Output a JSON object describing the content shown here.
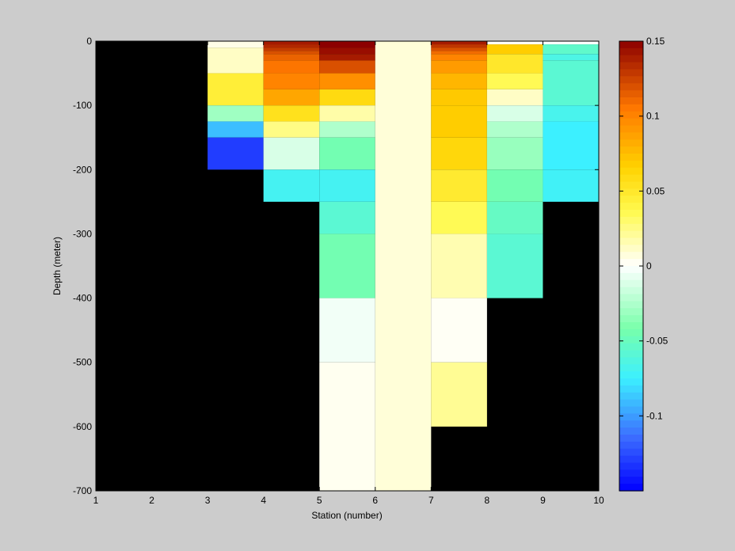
{
  "chart_data": {
    "type": "heatmap",
    "title": "",
    "xlabel": "Station (number)",
    "ylabel": "Depth (meter)",
    "xlim": [
      1,
      10
    ],
    "ylim": [
      -700,
      0
    ],
    "xticks": [
      "1",
      "2",
      "3",
      "4",
      "5",
      "6",
      "7",
      "8",
      "9",
      "10"
    ],
    "yticks": [
      "0",
      "-100",
      "-200",
      "-300",
      "-400",
      "-500",
      "-600",
      "-700"
    ],
    "background_color": "#000000",
    "colorbar": {
      "clim": [
        -0.15,
        0.15
      ],
      "ticks": [
        {
          "label": "0.15",
          "value": 0.15
        },
        {
          "label": "0.1",
          "value": 0.1
        },
        {
          "label": "0.05",
          "value": 0.05
        },
        {
          "label": "0",
          "value": 0
        },
        {
          "label": "-0.05",
          "value": -0.05
        },
        {
          "label": "-0.1",
          "value": -0.1
        }
      ],
      "colormap": "jet-like diverging (blue-cyan-green-white-yellow-orange-darkred)"
    },
    "columns": [
      {
        "x0": 3,
        "x1": 4,
        "cells": [
          {
            "d0": 0,
            "d1": -10,
            "v": 0.005
          },
          {
            "d0": -10,
            "d1": -50,
            "v": 0.012
          },
          {
            "d0": -50,
            "d1": -100,
            "v": 0.045
          },
          {
            "d0": -100,
            "d1": -125,
            "v": -0.03
          },
          {
            "d0": -125,
            "d1": -150,
            "v": -0.09
          },
          {
            "d0": -150,
            "d1": -200,
            "v": -0.13
          }
        ]
      },
      {
        "x0": 4,
        "x1": 5,
        "cells": [
          {
            "d0": 0,
            "d1": -5,
            "v": 0.14
          },
          {
            "d0": -5,
            "d1": -10,
            "v": 0.135
          },
          {
            "d0": -10,
            "d1": -15,
            "v": 0.128
          },
          {
            "d0": -15,
            "d1": -20,
            "v": 0.12
          },
          {
            "d0": -20,
            "d1": -30,
            "v": 0.113
          },
          {
            "d0": -30,
            "d1": -50,
            "v": 0.106
          },
          {
            "d0": -50,
            "d1": -75,
            "v": 0.1
          },
          {
            "d0": -75,
            "d1": -100,
            "v": 0.085
          },
          {
            "d0": -100,
            "d1": -125,
            "v": 0.055
          },
          {
            "d0": -125,
            "d1": -150,
            "v": 0.025
          },
          {
            "d0": -150,
            "d1": -200,
            "v": -0.012
          },
          {
            "d0": -200,
            "d1": -250,
            "v": -0.07
          }
        ]
      },
      {
        "x0": 5,
        "x1": 6,
        "cells": [
          {
            "d0": 0,
            "d1": -10,
            "v": 0.15
          },
          {
            "d0": -10,
            "d1": -20,
            "v": 0.145
          },
          {
            "d0": -20,
            "d1": -30,
            "v": 0.14
          },
          {
            "d0": -30,
            "d1": -50,
            "v": 0.12
          },
          {
            "d0": -50,
            "d1": -75,
            "v": 0.095
          },
          {
            "d0": -75,
            "d1": -100,
            "v": 0.06
          },
          {
            "d0": -100,
            "d1": -125,
            "v": 0.018
          },
          {
            "d0": -125,
            "d1": -150,
            "v": -0.025
          },
          {
            "d0": -150,
            "d1": -200,
            "v": -0.045
          },
          {
            "d0": -200,
            "d1": -250,
            "v": -0.07
          },
          {
            "d0": -250,
            "d1": -300,
            "v": -0.058
          },
          {
            "d0": -300,
            "d1": -400,
            "v": -0.045
          },
          {
            "d0": -400,
            "d1": -500,
            "v": -0.004
          },
          {
            "d0": -500,
            "d1": -700,
            "v": 0.003
          }
        ]
      },
      {
        "x0": 6,
        "x1": 7,
        "cells": [
          {
            "d0": 0,
            "d1": -700,
            "v": 0.008
          }
        ]
      },
      {
        "x0": 7,
        "x1": 8,
        "cells": [
          {
            "d0": 0,
            "d1": -5,
            "v": 0.14
          },
          {
            "d0": -5,
            "d1": -10,
            "v": 0.13
          },
          {
            "d0": -10,
            "d1": -15,
            "v": 0.12
          },
          {
            "d0": -15,
            "d1": -20,
            "v": 0.11
          },
          {
            "d0": -20,
            "d1": -30,
            "v": 0.1
          },
          {
            "d0": -30,
            "d1": -50,
            "v": 0.09
          },
          {
            "d0": -50,
            "d1": -75,
            "v": 0.078
          },
          {
            "d0": -75,
            "d1": -100,
            "v": 0.07
          },
          {
            "d0": -100,
            "d1": -150,
            "v": 0.068
          },
          {
            "d0": -150,
            "d1": -200,
            "v": 0.062
          },
          {
            "d0": -200,
            "d1": -250,
            "v": 0.048
          },
          {
            "d0": -250,
            "d1": -300,
            "v": 0.035
          },
          {
            "d0": -300,
            "d1": -400,
            "v": 0.016
          },
          {
            "d0": -400,
            "d1": -500,
            "v": 0.002
          },
          {
            "d0": -500,
            "d1": -600,
            "v": 0.022
          }
        ]
      },
      {
        "x0": 8,
        "x1": 9,
        "cells": [
          {
            "d0": 0,
            "d1": -5,
            "v": 0.0
          },
          {
            "d0": -5,
            "d1": -20,
            "v": 0.068
          },
          {
            "d0": -20,
            "d1": -50,
            "v": 0.05
          },
          {
            "d0": -50,
            "d1": -75,
            "v": 0.035
          },
          {
            "d0": -75,
            "d1": -100,
            "v": 0.012
          },
          {
            "d0": -100,
            "d1": -125,
            "v": -0.012
          },
          {
            "d0": -125,
            "d1": -150,
            "v": -0.025
          },
          {
            "d0": -150,
            "d1": -200,
            "v": -0.032
          },
          {
            "d0": -200,
            "d1": -250,
            "v": -0.045
          },
          {
            "d0": -250,
            "d1": -300,
            "v": -0.052
          },
          {
            "d0": -300,
            "d1": -400,
            "v": -0.058
          }
        ]
      },
      {
        "x0": 9,
        "x1": 10,
        "cells": [
          {
            "d0": 0,
            "d1": -5,
            "v": 0.0
          },
          {
            "d0": -5,
            "d1": -20,
            "v": -0.055
          },
          {
            "d0": -20,
            "d1": -30,
            "v": -0.065
          },
          {
            "d0": -30,
            "d1": -100,
            "v": -0.058
          },
          {
            "d0": -100,
            "d1": -125,
            "v": -0.068
          },
          {
            "d0": -125,
            "d1": -200,
            "v": -0.075
          },
          {
            "d0": -200,
            "d1": -250,
            "v": -0.072
          }
        ]
      }
    ]
  }
}
